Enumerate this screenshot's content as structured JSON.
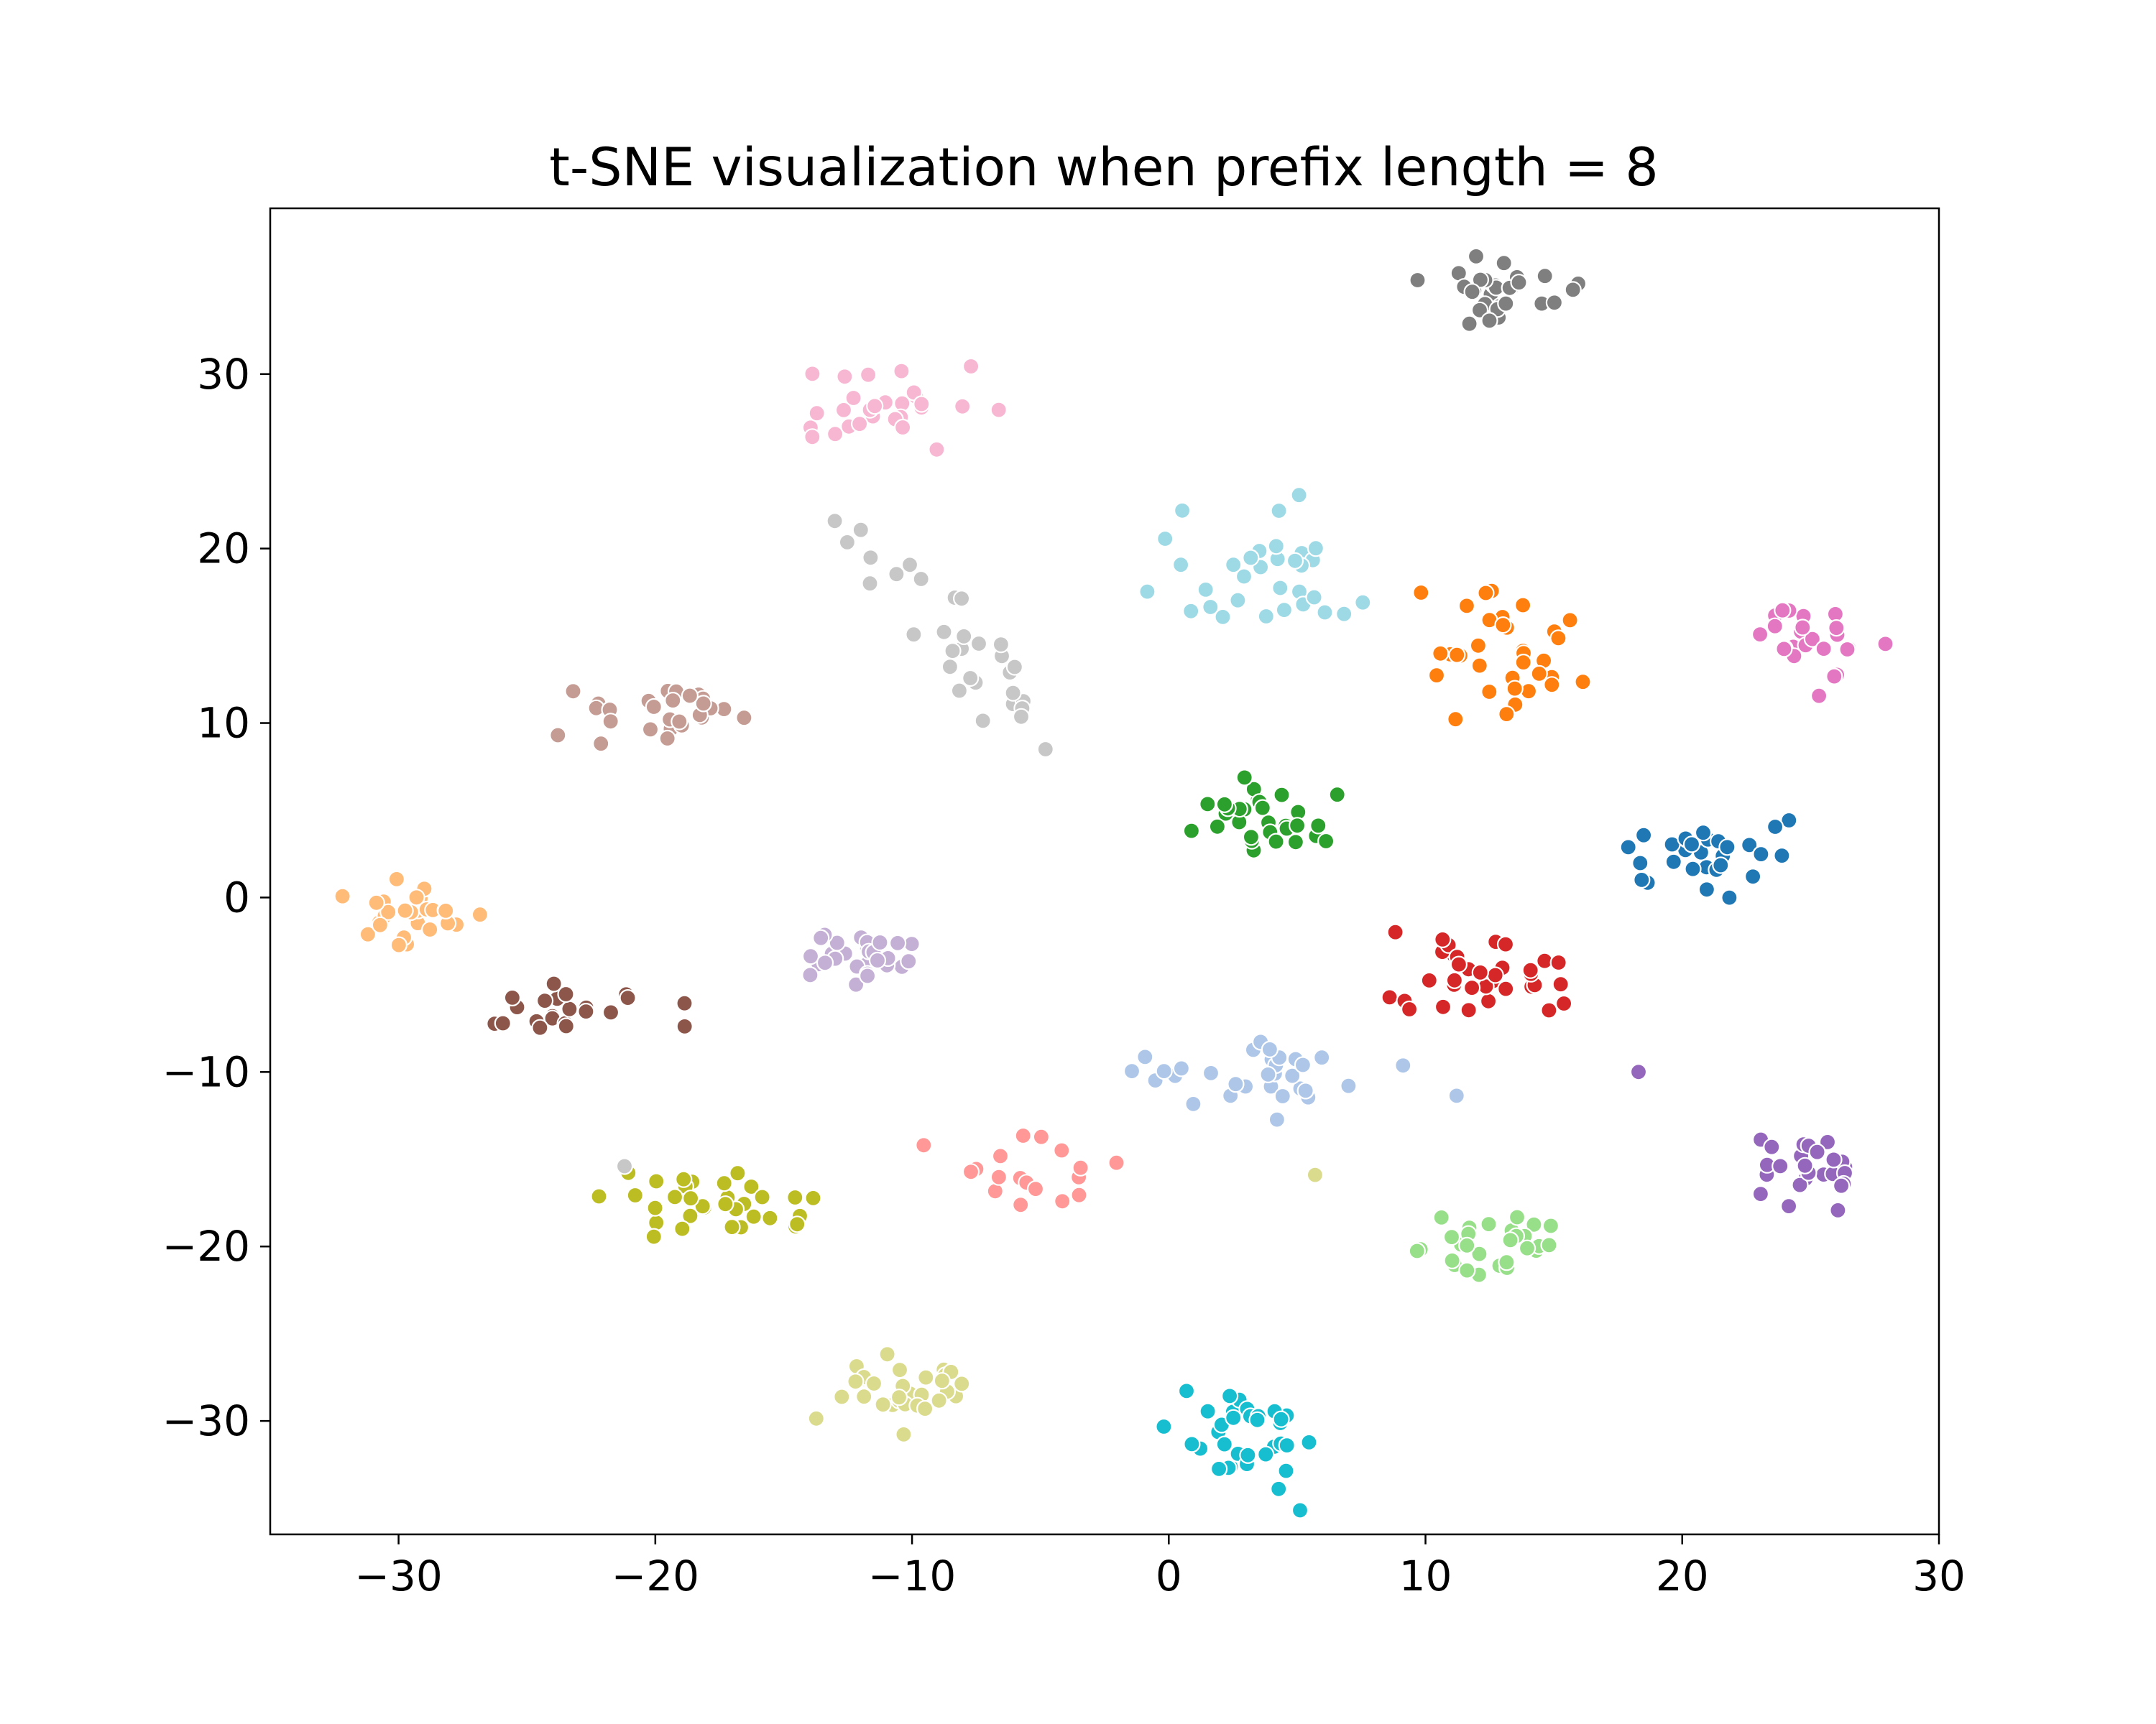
{
  "chart_data": {
    "type": "scatter",
    "title": "t-SNE visualization when prefix length = 8",
    "xlabel": "",
    "ylabel": "",
    "xlim": [
      -35,
      30
    ],
    "ylim": [
      -36.5,
      39.5
    ],
    "x_ticks": [
      -30,
      -20,
      -10,
      0,
      10,
      20,
      30
    ],
    "x_tick_labels": [
      "−30",
      "−20",
      "−10",
      "0",
      "10",
      "20",
      "30"
    ],
    "y_ticks": [
      -30,
      -20,
      -10,
      0,
      10,
      20,
      30
    ],
    "y_tick_labels": [
      "−30",
      "−20",
      "−10",
      "0",
      "10",
      "20",
      "30"
    ],
    "grid": false,
    "legend": false,
    "clusters": [
      {
        "name": "gray",
        "color": "#7f7f7f",
        "center": [
          13,
          34.5
        ],
        "spread": [
          2.0,
          1.4
        ],
        "n": 30
      },
      {
        "name": "pink",
        "color": "#f7b6d2",
        "center": [
          -11.5,
          28.2
        ],
        "spread": [
          2.4,
          1.5
        ],
        "n": 28
      },
      {
        "name": "light-gray",
        "color": "#c7c7c7",
        "center": [
          -9,
          16.5
        ],
        "spread": [
          1.2,
          1.2
        ],
        "n": 30,
        "line_from": [
          -12.5,
          21
        ],
        "line_to": [
          -5,
          9
        ]
      },
      {
        "name": "light-cyan",
        "color": "#9edae5",
        "center": [
          3.5,
          17.8
        ],
        "spread": [
          2.6,
          3.2
        ],
        "n": 32
      },
      {
        "name": "orange",
        "color": "#ff7f0e",
        "center": [
          13.2,
          14.2
        ],
        "spread": [
          2.0,
          2.1
        ],
        "n": 34
      },
      {
        "name": "magenta",
        "color": "#e377c2",
        "center": [
          25,
          14.6
        ],
        "spread": [
          1.8,
          1.7
        ],
        "n": 24
      },
      {
        "name": "tan-brown",
        "color": "#c49c94",
        "center": [
          -19.8,
          10.3
        ],
        "spread": [
          2.2,
          1.1
        ],
        "n": 28
      },
      {
        "name": "green",
        "color": "#2ca02c",
        "center": [
          3.3,
          4.5
        ],
        "spread": [
          1.9,
          1.1
        ],
        "n": 30
      },
      {
        "name": "blue",
        "color": "#1f77b4",
        "center": [
          20.6,
          2.3
        ],
        "spread": [
          2.5,
          1.3
        ],
        "n": 30
      },
      {
        "name": "light-orange",
        "color": "#ffbb78",
        "center": [
          -29.8,
          -1.2
        ],
        "spread": [
          1.7,
          1.2
        ],
        "n": 28
      },
      {
        "name": "lavender",
        "color": "#c5b0d5",
        "center": [
          -12,
          -3.3
        ],
        "spread": [
          1.5,
          1.1
        ],
        "n": 30
      },
      {
        "name": "red",
        "color": "#d62728",
        "center": [
          11.8,
          -4.2
        ],
        "spread": [
          2.2,
          1.6
        ],
        "n": 36
      },
      {
        "name": "brown",
        "color": "#8c564b",
        "center": [
          -23.2,
          -6.6
        ],
        "spread": [
          2.5,
          0.8
        ],
        "n": 22
      },
      {
        "name": "light-blue",
        "color": "#aec7e8",
        "center": [
          3.5,
          -10
        ],
        "spread": [
          3.2,
          1.3
        ],
        "n": 32
      },
      {
        "name": "purple",
        "color": "#9467bd",
        "center": [
          25.2,
          -15.7
        ],
        "spread": [
          1.4,
          1.2
        ],
        "n": 26
      },
      {
        "name": "salmon",
        "color": "#ff9896",
        "center": [
          -5.5,
          -15.7
        ],
        "spread": [
          2.3,
          1.5
        ],
        "n": 18
      },
      {
        "name": "olive",
        "color": "#bcbd22",
        "center": [
          -17.5,
          -17.2
        ],
        "spread": [
          2.2,
          1.5
        ],
        "n": 34
      },
      {
        "name": "light-green",
        "color": "#98df8a",
        "center": [
          12,
          -20.2
        ],
        "spread": [
          1.8,
          1.1
        ],
        "n": 30
      },
      {
        "name": "khaki",
        "color": "#dbdb8d",
        "center": [
          -10.5,
          -28.5
        ],
        "spread": [
          2.4,
          1.6
        ],
        "n": 30
      },
      {
        "name": "cyan",
        "color": "#17becf",
        "center": [
          2.8,
          -30.7
        ],
        "spread": [
          1.9,
          1.8
        ],
        "n": 34
      }
    ],
    "outliers": [
      {
        "x": 18.3,
        "y": -10.0,
        "color": "#9467bd"
      },
      {
        "x": 5.7,
        "y": -15.9,
        "color": "#dbdb8d"
      },
      {
        "x": -21.2,
        "y": -15.4,
        "color": "#c7c7c7"
      },
      {
        "x": -4.8,
        "y": 8.5,
        "color": "#c7c7c7"
      }
    ]
  }
}
